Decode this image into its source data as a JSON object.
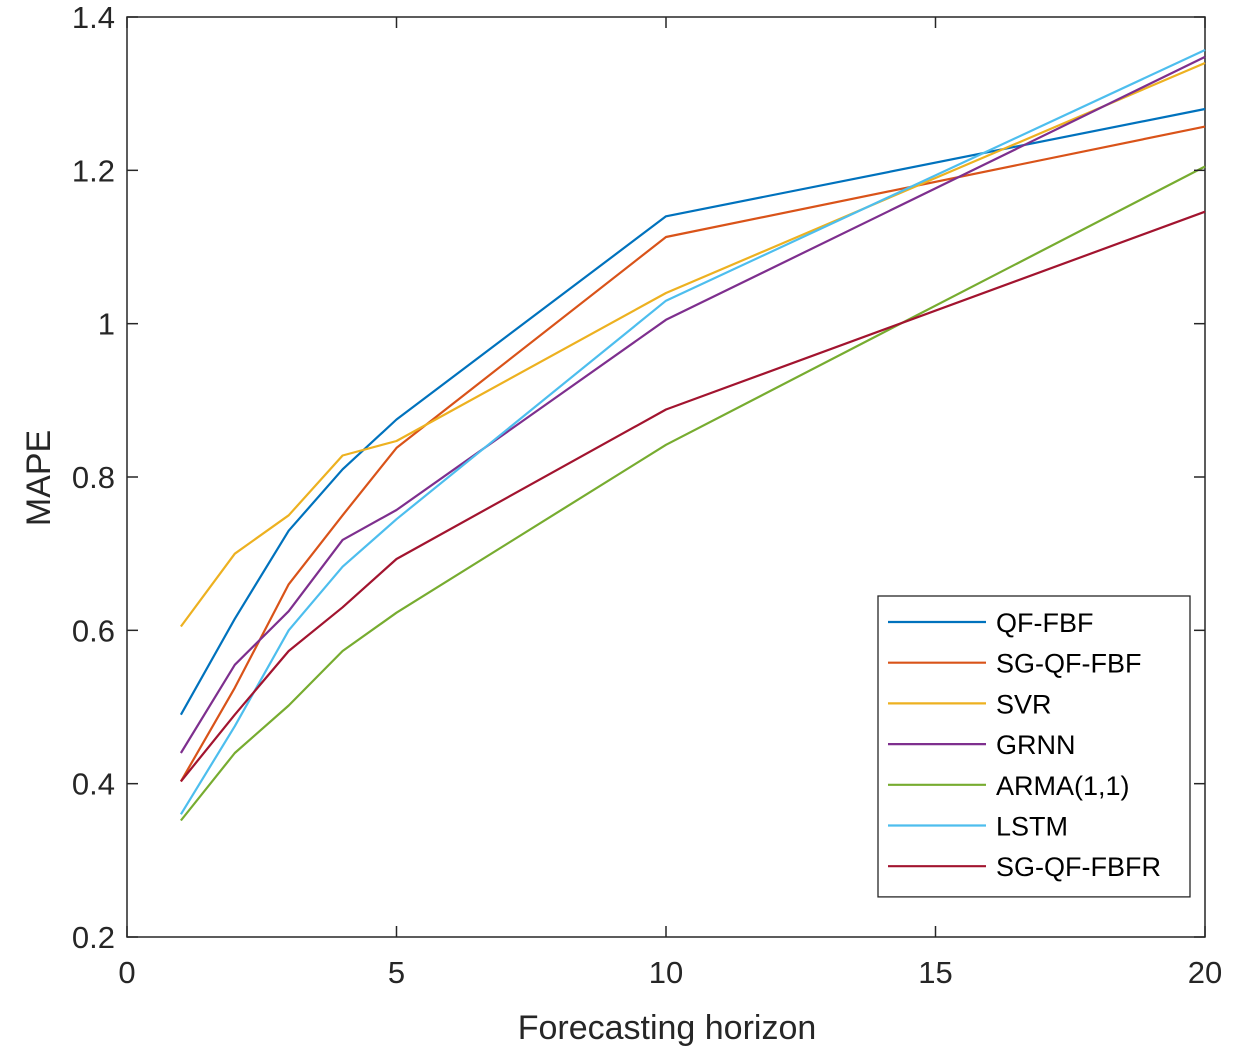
{
  "chart_data": {
    "type": "line",
    "title": "",
    "xlabel": "Forecasting horizon",
    "ylabel": "MAPE",
    "xlim": [
      0,
      20
    ],
    "ylim": [
      0.2,
      1.4
    ],
    "xticks": [
      0,
      5,
      10,
      15,
      20
    ],
    "xtick_labels": [
      "0",
      "5",
      "10",
      "15",
      "20"
    ],
    "yticks": [
      0.2,
      0.4,
      0.6,
      0.8,
      1.0,
      1.2,
      1.4
    ],
    "ytick_labels": [
      "0.2",
      "0.4",
      "0.6",
      "0.8",
      "1",
      "1.2",
      "1.4"
    ],
    "grid": false,
    "legend_position": "bottom-right",
    "x": [
      1,
      2,
      3,
      4,
      5,
      10,
      20
    ],
    "series": [
      {
        "name": "QF-FBF",
        "color": "#0072BD",
        "values": [
          0.49,
          0.615,
          0.73,
          0.81,
          0.875,
          1.14,
          1.28
        ]
      },
      {
        "name": "SG-QF-FBF",
        "color": "#D95319",
        "values": [
          0.403,
          0.525,
          0.66,
          0.75,
          0.838,
          1.113,
          1.257
        ]
      },
      {
        "name": "SVR",
        "color": "#EDB120",
        "values": [
          0.605,
          0.7,
          0.75,
          0.828,
          0.847,
          1.04,
          1.34
        ]
      },
      {
        "name": "GRNN",
        "color": "#7E2F8E",
        "values": [
          0.44,
          0.555,
          0.625,
          0.718,
          0.757,
          1.005,
          1.348
        ]
      },
      {
        "name": "ARMA(1,1)",
        "color": "#77AC30",
        "values": [
          0.352,
          0.44,
          0.502,
          0.573,
          0.623,
          0.842,
          1.205
        ]
      },
      {
        "name": "LSTM",
        "color": "#4DBEEE",
        "values": [
          0.36,
          0.475,
          0.6,
          0.683,
          0.745,
          1.03,
          1.357
        ]
      },
      {
        "name": "SG-QF-FBFR",
        "color": "#A2142F",
        "values": [
          0.403,
          0.49,
          0.573,
          0.63,
          0.693,
          0.888,
          1.146
        ]
      }
    ]
  }
}
